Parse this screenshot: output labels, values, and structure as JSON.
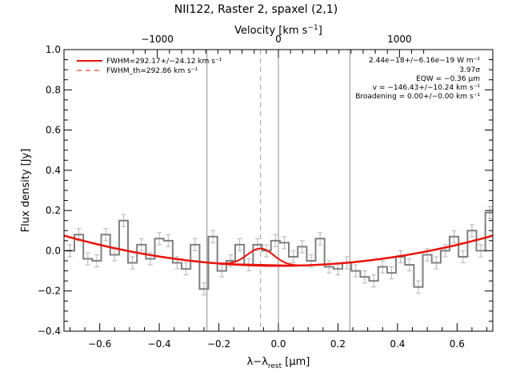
{
  "chart_data": {
    "type": "line",
    "title": "NII122, Raster 2, spaxel (2,1)",
    "xlabel": "λ−λrest [μm]",
    "xlabel_parts": {
      "main": "λ−λ",
      "sub": "rest",
      "unit": " [μm]"
    },
    "ylabel": "Flux density [Jy]",
    "top_axis_label": "Velocity [km s⁻¹]",
    "top_axis_label_parts": {
      "main": "Velocity [km s",
      "sup": "−1",
      "end": "]"
    },
    "xlim": [
      -0.72,
      0.72
    ],
    "ylim": [
      -0.4,
      1.0
    ],
    "x_ticks": [
      -0.6,
      -0.4,
      -0.2,
      0.0,
      0.2,
      0.4,
      0.6
    ],
    "x_tick_labels": [
      "−0.6",
      "−0.4",
      "−0.2",
      "0.0",
      "0.2",
      "0.4",
      "0.6"
    ],
    "y_ticks": [
      -0.4,
      -0.2,
      0.0,
      0.2,
      0.4,
      0.6,
      0.8,
      1.0
    ],
    "y_tick_labels": [
      "−0.4",
      "−0.2",
      "0.0",
      "0.2",
      "0.4",
      "0.6",
      "0.8",
      "1.0"
    ],
    "top_ticks_velocity": [
      -1000,
      0,
      1000
    ],
    "top_tick_labels": [
      "−1000",
      "0",
      "1000"
    ],
    "rest_wavelength_um": 121.9,
    "vertical_lines": [
      -0.24,
      0.0,
      0.24
    ],
    "line_center_dashed": -0.06,
    "spectrum": {
      "step_width": 0.03,
      "x": [
        -0.7,
        -0.67,
        -0.64,
        -0.61,
        -0.58,
        -0.55,
        -0.52,
        -0.49,
        -0.46,
        -0.43,
        -0.4,
        -0.37,
        -0.34,
        -0.31,
        -0.28,
        -0.25,
        -0.22,
        -0.19,
        -0.16,
        -0.13,
        -0.1,
        -0.07,
        -0.04,
        -0.01,
        0.02,
        0.05,
        0.08,
        0.11,
        0.14,
        0.17,
        0.2,
        0.23,
        0.26,
        0.29,
        0.32,
        0.35,
        0.38,
        0.41,
        0.44,
        0.47,
        0.5,
        0.53,
        0.56,
        0.59,
        0.62,
        0.65,
        0.68,
        0.71
      ],
      "y": [
        0.0,
        0.08,
        -0.04,
        -0.05,
        0.08,
        -0.02,
        0.15,
        -0.06,
        0.03,
        -0.04,
        0.06,
        0.05,
        -0.06,
        -0.09,
        0.03,
        -0.19,
        0.07,
        -0.1,
        -0.05,
        0.03,
        -0.07,
        0.03,
        0.0,
        0.05,
        0.04,
        -0.03,
        0.02,
        -0.05,
        0.06,
        -0.08,
        -0.09,
        -0.06,
        -0.1,
        -0.13,
        -0.15,
        -0.08,
        -0.11,
        -0.03,
        -0.07,
        -0.18,
        -0.02,
        -0.06,
        0.0,
        0.07,
        -0.03,
        0.1,
        0.0,
        0.19
      ],
      "error": 0.03
    },
    "fit": {
      "baseline_poly": [
        -0.075,
        0.0,
        0.29
      ],
      "gauss_amp": 0.085,
      "gauss_center": -0.06,
      "gauss_sigma": 0.045
    },
    "legend": [
      {
        "label": "FWHM=292.17+/−24.12 km s⁻¹",
        "style": "solid"
      },
      {
        "label": "FWHM_th=292.86 km s⁻¹",
        "style": "dashed"
      }
    ],
    "annotations": [
      "2.44e−18+/−6.16e−19 W m⁻²",
      "3.97σ",
      "EQW = −0.36 μm",
      "v = −146.43+/−10.24 km s⁻¹",
      "Broadening = 0.00+/−0.00 km s⁻¹"
    ],
    "grid": false,
    "legend_position": "top-left"
  },
  "colors": {
    "spectrum": "#808080",
    "errorbar": "#b4b4b4",
    "fit": "#e8120a",
    "legend_text": "#e8120a",
    "axes": "#000000"
  }
}
